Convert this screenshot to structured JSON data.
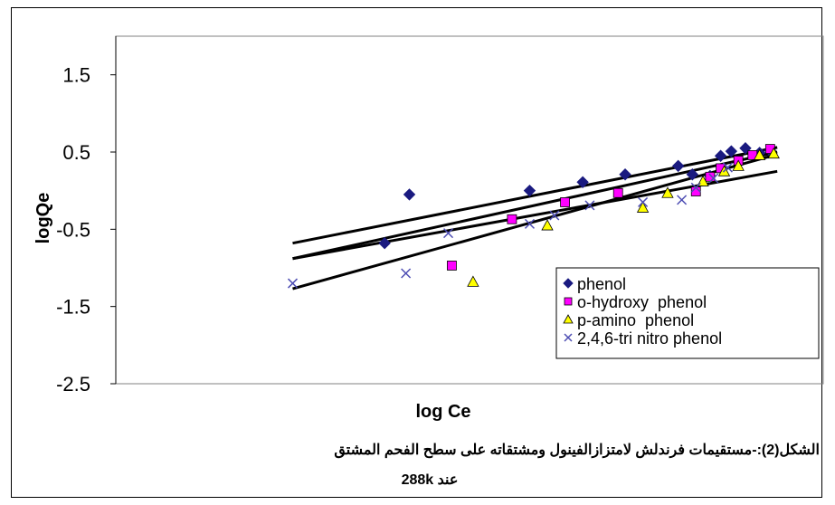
{
  "chart_data": {
    "type": "scatter",
    "title": "",
    "xlabel": "log Ce",
    "ylabel": "logQe",
    "ylim": [
      -2.5,
      2.0
    ],
    "yticks": [
      "1.5",
      "0.5",
      "-0.5",
      "-1.5",
      "-2.5"
    ],
    "y_tick_values": [
      1.5,
      0.5,
      -0.5,
      -1.5,
      -2.5
    ],
    "xlim": [
      0.0,
      2.0
    ],
    "grid": false,
    "legend_position": "bottom-right",
    "series": [
      {
        "name": "phenol",
        "marker": "diamond",
        "color": "#1a1a80",
        "points": [
          [
            0.76,
            -0.68
          ],
          [
            0.83,
            -0.05
          ],
          [
            1.17,
            0.0
          ],
          [
            1.32,
            0.11
          ],
          [
            1.44,
            0.21
          ],
          [
            1.59,
            0.32
          ],
          [
            1.63,
            0.21
          ],
          [
            1.68,
            0.19
          ],
          [
            1.71,
            0.45
          ],
          [
            1.74,
            0.51
          ],
          [
            1.78,
            0.55
          ],
          [
            1.82,
            0.49
          ],
          [
            1.85,
            0.52
          ]
        ],
        "fit": [
          [
            0.5,
            -0.68
          ],
          [
            1.87,
            0.56
          ]
        ]
      },
      {
        "name": "o-hydroxy  phenol",
        "marker": "square",
        "color": "#ff00ff",
        "points": [
          [
            0.95,
            -0.97
          ],
          [
            1.12,
            -0.37
          ],
          [
            1.27,
            -0.15
          ],
          [
            1.42,
            -0.03
          ],
          [
            1.64,
            -0.01
          ],
          [
            1.68,
            0.18
          ],
          [
            1.71,
            0.29
          ],
          [
            1.76,
            0.39
          ],
          [
            1.8,
            0.46
          ],
          [
            1.85,
            0.54
          ]
        ],
        "fit": [
          [
            0.5,
            -0.88
          ],
          [
            1.87,
            0.5
          ]
        ]
      },
      {
        "name": "p-amino  phenol",
        "marker": "triangle",
        "color": "#ffff00",
        "points": [
          [
            1.01,
            -1.18
          ],
          [
            1.22,
            -0.45
          ],
          [
            1.49,
            -0.22
          ],
          [
            1.56,
            -0.03
          ],
          [
            1.66,
            0.12
          ],
          [
            1.72,
            0.25
          ],
          [
            1.76,
            0.32
          ],
          [
            1.82,
            0.46
          ],
          [
            1.86,
            0.48
          ]
        ],
        "fit": [
          [
            0.5,
            -1.27
          ],
          [
            1.87,
            0.47
          ]
        ]
      },
      {
        "name": "2,4,6-tri nitro phenol",
        "marker": "x",
        "color": "#4d4db3",
        "points": [
          [
            0.5,
            -1.2
          ],
          [
            0.82,
            -1.07
          ],
          [
            0.94,
            -0.55
          ],
          [
            1.17,
            -0.43
          ],
          [
            1.24,
            -0.32
          ],
          [
            1.34,
            -0.19
          ],
          [
            1.49,
            -0.15
          ],
          [
            1.6,
            -0.12
          ],
          [
            1.64,
            0.04
          ],
          [
            1.69,
            0.16
          ],
          [
            1.73,
            0.3
          ]
        ],
        "fit": [
          [
            0.5,
            -0.88
          ],
          [
            1.87,
            0.25
          ]
        ]
      }
    ]
  },
  "caption": {
    "line1": "الشكل(2):-مستقيمات فرندلش لامتزازالفينول ومشتقاته على سطح الفحم المشتق",
    "line2": "عند 288k"
  }
}
